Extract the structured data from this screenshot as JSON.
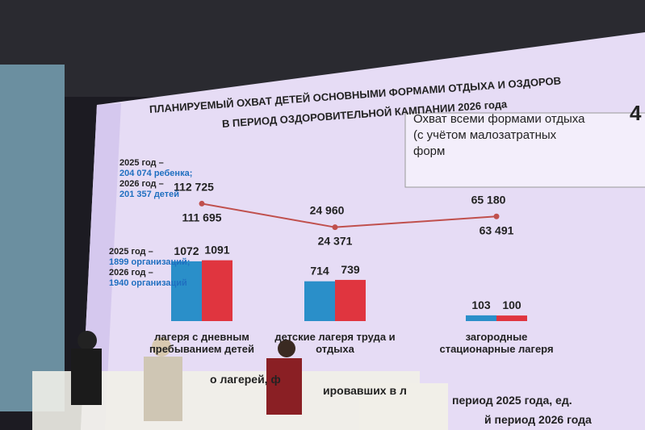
{
  "title_lines": [
    "ПЛАНИРУЕМЫЙ ОХВАТ ДЕТЕЙ ОСНОВНЫМИ ФОРМАМИ ОТДЫХА И ОЗДОРОВ",
    "В ПЕРИОД ОЗДОРОВИТЕЛЬНОЙ КАМПАНИИ  2026 года"
  ],
  "box": {
    "text": "Охват всеми формами отдыха (с учётом малозатратных форм",
    "number": "4"
  },
  "notes": {
    "children": [
      "2025 год –",
      "204 074 ребенка;",
      "2026 год –",
      "201 357 детей"
    ],
    "organizations": [
      "2025 год –",
      "1899 организаций;",
      "2026 год –",
      "1940 организаций"
    ]
  },
  "footer": [
    "о лагерей, ф",
    "ировавших в л",
    "период 2025 года, ед.",
    "й период 2026 года"
  ],
  "chart_data": {
    "type": "bar",
    "categories": [
      "лагеря с дневным пребыванием детей",
      "детские лагеря труда и отдыха",
      "загородные стационарные лагеря"
    ],
    "series": [
      {
        "color": "#2a8fc9",
        "values": [
          1072,
          714,
          103
        ]
      },
      {
        "color": "#e0353f",
        "values": [
          1091,
          739,
          100
        ]
      }
    ],
    "ylim": [
      0,
      1100
    ],
    "line": {
      "color": "#c0504d",
      "values": [
        112725,
        24960,
        65180
      ],
      "value_labels": [
        "112 725",
        "24 960",
        "65 180"
      ],
      "lower_values": [
        111695,
        24371,
        63491
      ],
      "lower_value_labels": [
        "111 695",
        "24 371",
        "63 491"
      ],
      "ylim": [
        0,
        120000
      ]
    }
  }
}
